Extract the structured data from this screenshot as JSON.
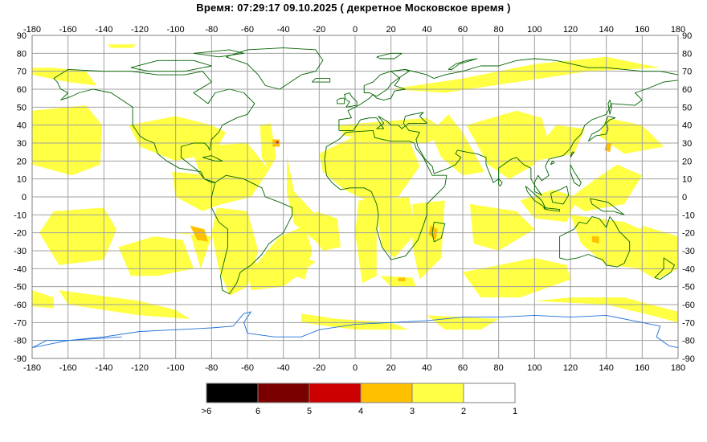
{
  "title": "Время: 07:29:17   09.10.2025  ( декретное Московское время )",
  "map": {
    "lon_ticks": [
      "-180",
      "-160",
      "-140",
      "-120",
      "-100",
      "-80",
      "-60",
      "-40",
      "-20",
      "0",
      "20",
      "40",
      "60",
      "80",
      "100",
      "120",
      "140",
      "160",
      "180"
    ],
    "lat_ticks": [
      "90",
      "80",
      "70",
      "60",
      "50",
      "40",
      "30",
      "20",
      "10",
      "0",
      "-10",
      "-20",
      "-30",
      "-40",
      "-50",
      "-60",
      "-70",
      "-80",
      "-90"
    ],
    "colors": {
      "background": "#ffffff",
      "grid": "#a0a0a0",
      "frame": "#808080",
      "coastline": "#006400",
      "antarctica": "#1e6fd9",
      "level2": "#ffff44",
      "level3": "#ffc000",
      "level4": "#cc0000"
    }
  },
  "legend": {
    "items": [
      {
        "label": ">6",
        "color": "#000000"
      },
      {
        "label": "6",
        "color": "#7a0000"
      },
      {
        "label": "5",
        "color": "#cc0000"
      },
      {
        "label": "4",
        "color": "#ffc000"
      },
      {
        "label": "3",
        "color": "#ffff44"
      },
      {
        "label": "2",
        "color": "#ffffff"
      },
      {
        "label": "1",
        "color": ""
      }
    ]
  }
}
